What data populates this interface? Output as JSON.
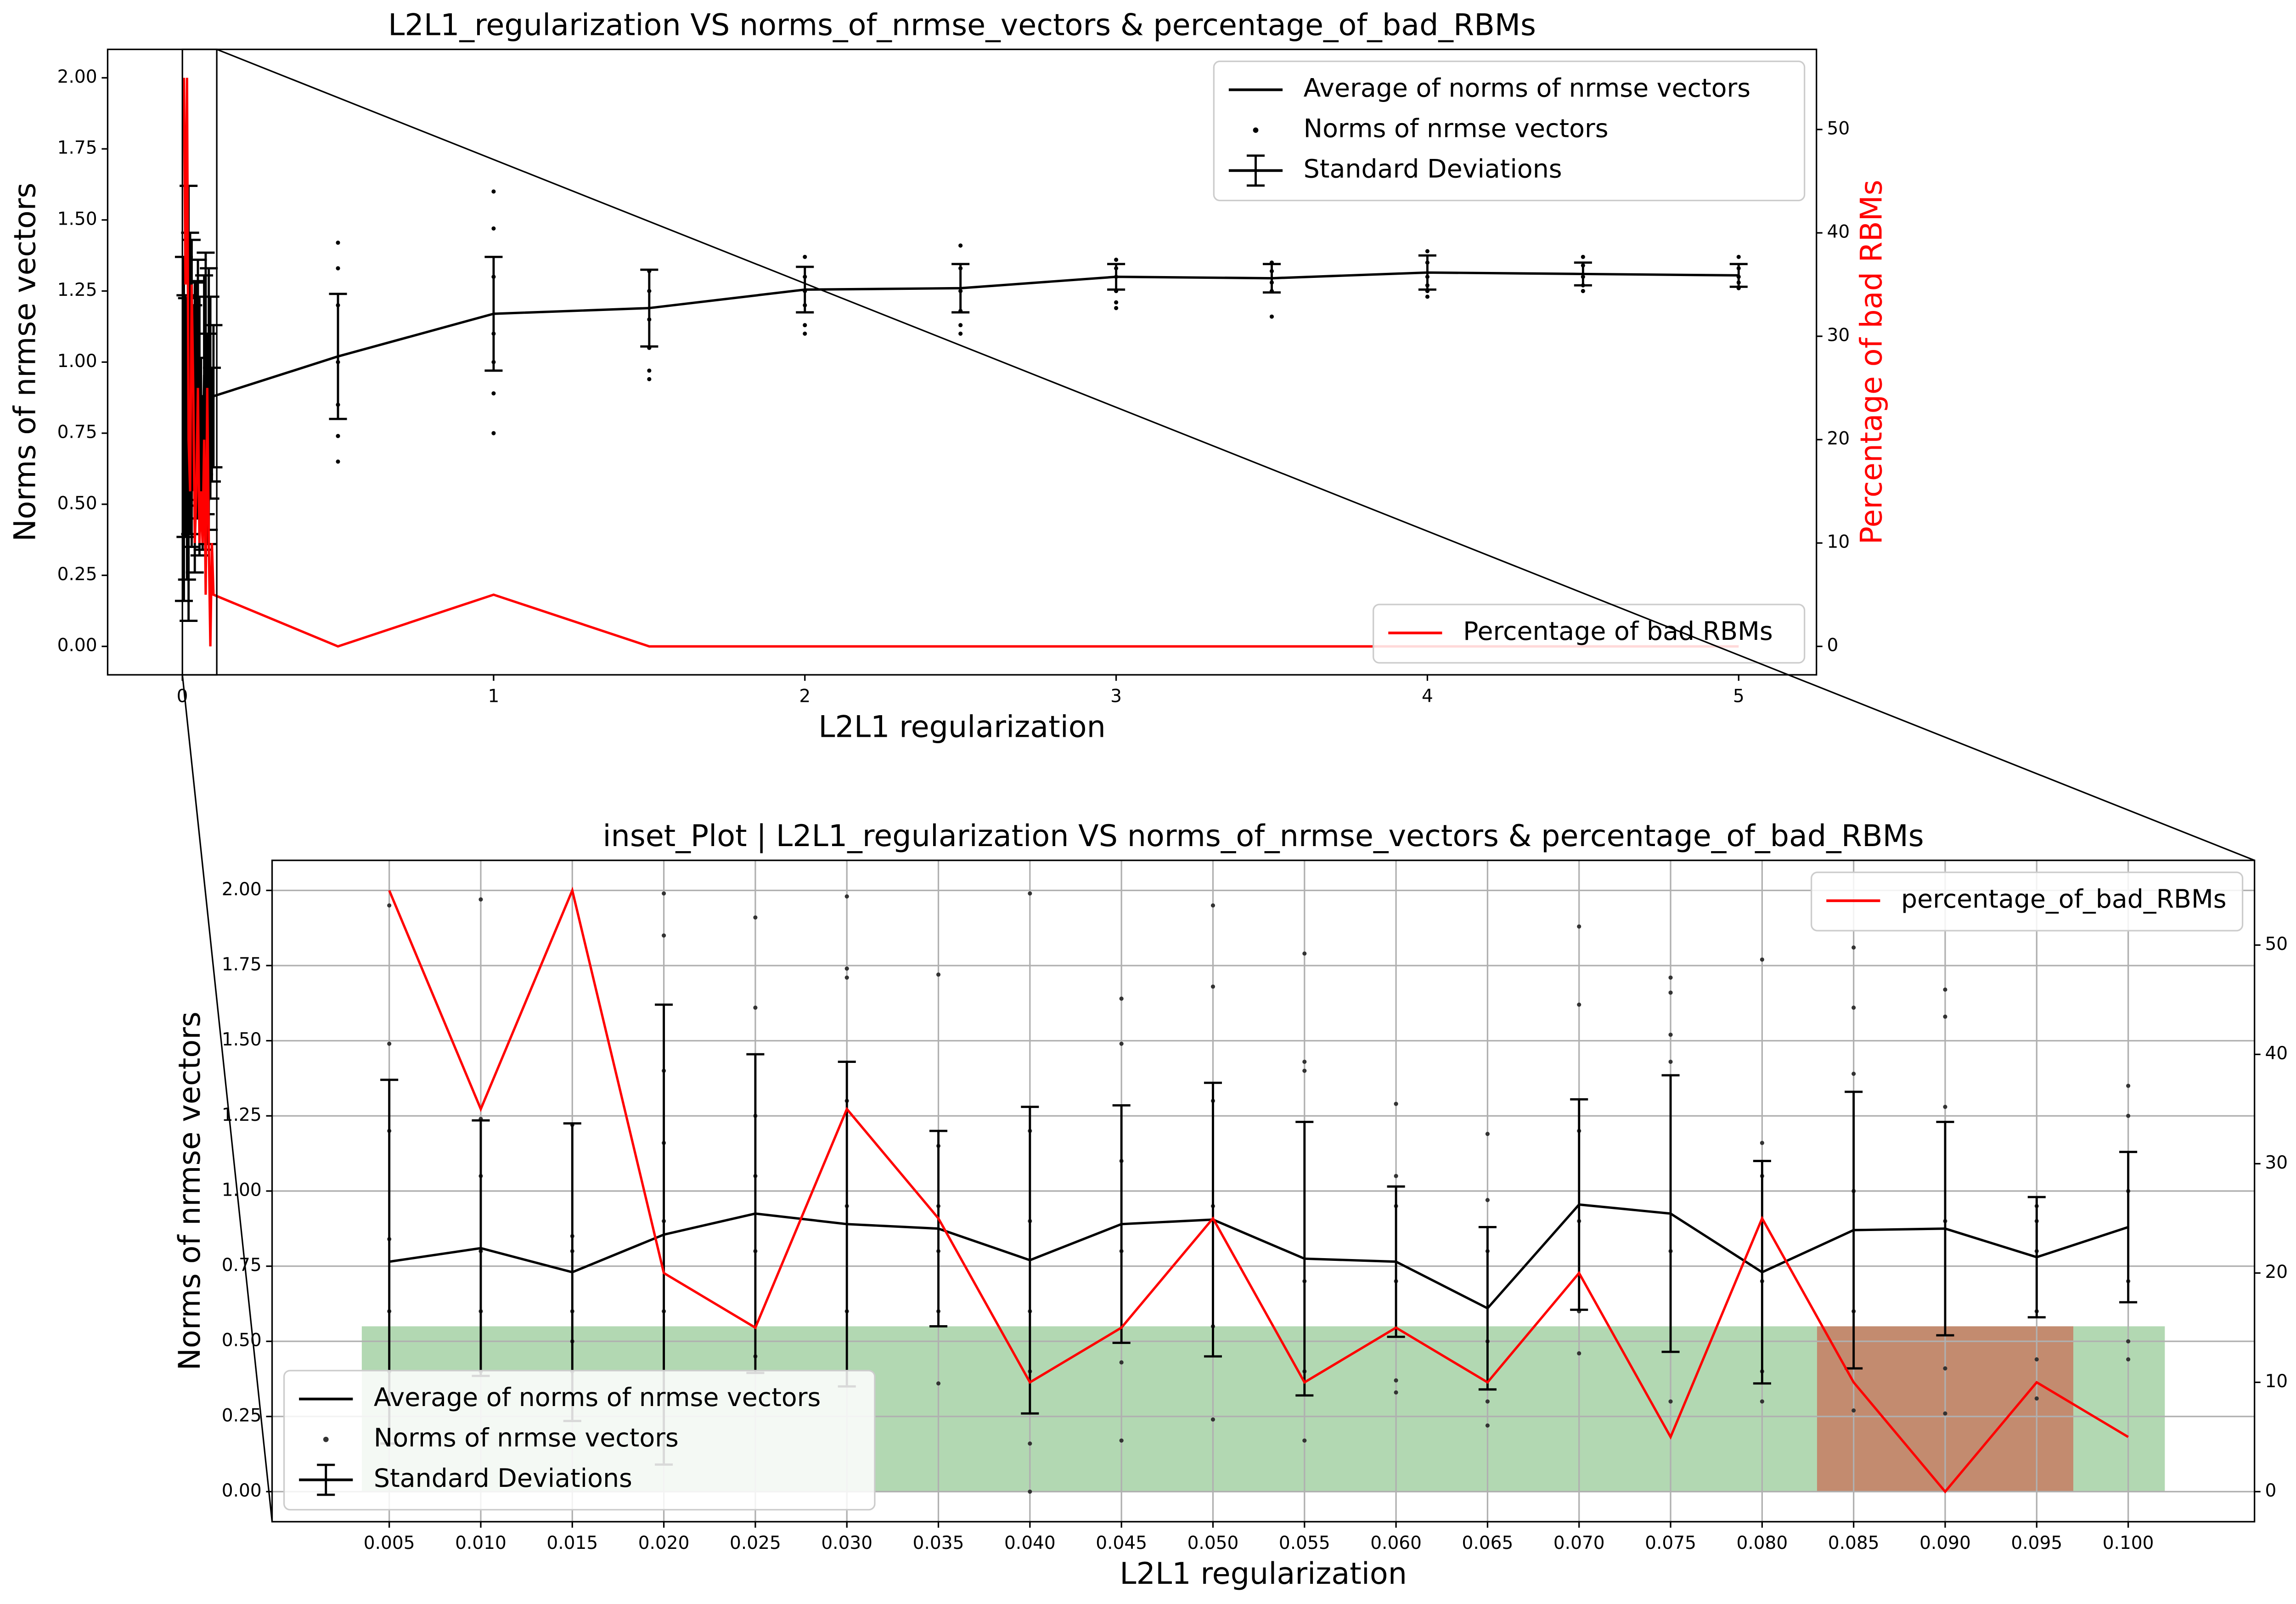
{
  "chart_data": [
    {
      "type": "line",
      "title": "L2L1_regularization  VS  norms_of_nrmse_vectors  &  percentage_of_bad_RBMs",
      "xlabel": "L2L1 regularization",
      "ylabel": "Norms of nrmse vectors",
      "y2label": "Percentage of bad RBMs",
      "xlim": [
        -0.24,
        5.25
      ],
      "ylim": [
        -0.1,
        2.1
      ],
      "y2lim": [
        -2.75,
        57.75
      ],
      "xticks": [
        0,
        1,
        2,
        3,
        4,
        5
      ],
      "yticks": [
        {
          "value": 0,
          "label": "0.00"
        },
        0.25,
        {
          "value": 0.5,
          "label": "0.50"
        },
        0.75,
        {
          "value": 1,
          "label": "1.00"
        },
        1.25,
        {
          "value": 1.5,
          "label": "1.50"
        },
        1.75,
        {
          "value": 2,
          "label": "2.00"
        }
      ],
      "y2ticks": [
        0,
        10,
        20,
        30,
        40,
        50
      ],
      "grid": false,
      "legend": "upper right",
      "y2_legend": "lower right",
      "series": [
        {
          "name": "Average of norms of nrmse vectors",
          "type": "line",
          "color": "#000000",
          "x": [
            0.005,
            0.01,
            0.015,
            0.02,
            0.025,
            0.03,
            0.035,
            0.04,
            0.045,
            0.05,
            0.055,
            0.06,
            0.065,
            0.07,
            0.075,
            0.08,
            0.085,
            0.09,
            0.095,
            0.1,
            0.5,
            1,
            1.5,
            2,
            2.5,
            3,
            3.5,
            4,
            4.5,
            5
          ],
          "values": [
            0.765,
            0.81,
            0.73,
            0.855,
            0.925,
            0.89,
            0.875,
            0.77,
            0.89,
            0.905,
            0.775,
            0.765,
            0.61,
            0.955,
            0.925,
            0.73,
            0.87,
            0.875,
            0.78,
            0.88,
            1.02,
            1.17,
            1.19,
            1.255,
            1.26,
            1.3,
            1.295,
            1.315,
            1.31,
            1.305
          ]
        },
        {
          "name": "Norms of nrmse vectors",
          "type": "scatter",
          "color": "#000000",
          "x": [
            0.5,
            0.5,
            0.5,
            0.5,
            0.5,
            0.5,
            0.5,
            1,
            1,
            1,
            1,
            1,
            1,
            1,
            1.5,
            1.5,
            1.5,
            1.5,
            1.5,
            1.5,
            2,
            2,
            2,
            2,
            2,
            2,
            2.5,
            2.5,
            2.5,
            2.5,
            2.5,
            2.5,
            3,
            3,
            3,
            3,
            3,
            3,
            3.5,
            3.5,
            3.5,
            3.5,
            3.5,
            4,
            4,
            4,
            4,
            4,
            4,
            4.5,
            4.5,
            4.5,
            4.5,
            4.5,
            5,
            5,
            5,
            5,
            5
          ],
          "values": [
            1.42,
            1.33,
            1.2,
            1.0,
            0.85,
            0.74,
            0.65,
            1.6,
            1.47,
            1.3,
            1.1,
            1.0,
            0.89,
            0.75,
            1.32,
            1.25,
            1.15,
            1.05,
            0.97,
            0.94,
            1.37,
            1.3,
            1.25,
            1.2,
            1.13,
            1.1,
            1.41,
            1.33,
            1.25,
            1.18,
            1.13,
            1.1,
            1.36,
            1.33,
            1.3,
            1.25,
            1.21,
            1.19,
            1.35,
            1.32,
            1.28,
            1.25,
            1.16,
            1.39,
            1.35,
            1.3,
            1.27,
            1.25,
            1.23,
            1.37,
            1.34,
            1.3,
            1.27,
            1.25,
            1.37,
            1.33,
            1.3,
            1.28,
            1.26
          ]
        },
        {
          "name": "Standard Deviations",
          "type": "errorbar",
          "color": "#000000",
          "x": [
            0.005,
            0.01,
            0.015,
            0.02,
            0.025,
            0.03,
            0.035,
            0.04,
            0.045,
            0.05,
            0.055,
            0.06,
            0.065,
            0.07,
            0.075,
            0.08,
            0.085,
            0.09,
            0.095,
            0.1,
            0.5,
            1,
            1.5,
            2,
            2.5,
            3,
            3.5,
            4,
            4.5,
            5
          ],
          "values": [
            0.765,
            0.81,
            0.73,
            0.855,
            0.925,
            0.89,
            0.875,
            0.77,
            0.89,
            0.905,
            0.775,
            0.765,
            0.61,
            0.955,
            0.925,
            0.73,
            0.87,
            0.875,
            0.78,
            0.88,
            1.02,
            1.17,
            1.19,
            1.255,
            1.26,
            1.3,
            1.295,
            1.315,
            1.31,
            1.305
          ],
          "errors": [
            0.605,
            0.425,
            0.495,
            0.765,
            0.53,
            0.54,
            0.325,
            0.51,
            0.395,
            0.455,
            0.455,
            0.25,
            0.27,
            0.35,
            0.46,
            0.37,
            0.46,
            0.355,
            0.2,
            0.25,
            0.22,
            0.2,
            0.135,
            0.08,
            0.085,
            0.045,
            0.05,
            0.06,
            0.04,
            0.04
          ]
        },
        {
          "name": "Percentage of bad RBMs",
          "type": "line",
          "axis": "y2",
          "color": "#ff0000",
          "x": [
            0.005,
            0.01,
            0.015,
            0.02,
            0.025,
            0.03,
            0.035,
            0.04,
            0.045,
            0.05,
            0.055,
            0.06,
            0.065,
            0.07,
            0.075,
            0.08,
            0.085,
            0.09,
            0.095,
            0.1,
            0.5,
            1,
            1.5,
            2,
            2.5,
            3,
            3.5,
            4,
            4.5,
            5
          ],
          "values": [
            55,
            35,
            55,
            20,
            15,
            35,
            25,
            10,
            15,
            25,
            10,
            15,
            10,
            20,
            5,
            25,
            10,
            0,
            10,
            5,
            0,
            5,
            0,
            0,
            0,
            0,
            0,
            0,
            0,
            0
          ]
        }
      ]
    },
    {
      "type": "line",
      "title": "inset_Plot | L2L1_regularization  VS  norms_of_nrmse_vectors  &  percentage_of_bad_RBMs",
      "xlabel": "L2L1 regularization",
      "ylabel": "Norms of nrmse vectors",
      "y2label": "Percentage of bad RBMs",
      "xlim": [
        -0.0014,
        0.1069
      ],
      "ylim": [
        -0.1,
        2.1
      ],
      "y2lim": [
        -2.75,
        57.75
      ],
      "xticks": [
        0.005,
        {
          "value": 0.01,
          "label": "0.010"
        },
        0.015,
        {
          "value": 0.02,
          "label": "0.020"
        },
        0.025,
        {
          "value": 0.03,
          "label": "0.030"
        },
        0.035,
        {
          "value": 0.04,
          "label": "0.040"
        },
        0.045,
        {
          "value": 0.05,
          "label": "0.050"
        },
        0.055,
        {
          "value": 0.06,
          "label": "0.060"
        },
        0.065,
        {
          "value": 0.07,
          "label": "0.070"
        },
        0.075,
        {
          "value": 0.08,
          "label": "0.080"
        },
        0.085,
        {
          "value": 0.09,
          "label": "0.090"
        },
        0.095,
        {
          "value": 0.1,
          "label": "0.100"
        }
      ],
      "yticks": [
        {
          "value": 0,
          "label": "0.00"
        },
        0.25,
        {
          "value": 0.5,
          "label": "0.50"
        },
        0.75,
        {
          "value": 1,
          "label": "1.00"
        },
        1.25,
        {
          "value": 1.5,
          "label": "1.50"
        },
        1.75,
        {
          "value": 2,
          "label": "2.00"
        }
      ],
      "y2ticks": [
        0,
        10,
        20,
        30,
        40,
        50
      ],
      "grid": true,
      "legend": "lower left",
      "y2_legend": "upper right",
      "spans": [
        {
          "x": [
            0.0035,
            0.102
          ],
          "y": [
            0,
            0.55
          ],
          "color": "#b2d8b2"
        },
        {
          "x": [
            0.083,
            0.097
          ],
          "y": [
            0,
            0.55
          ],
          "color": "#c38b6f"
        }
      ],
      "series": [
        {
          "name": "Average of norms of nrmse vectors",
          "type": "line",
          "color": "#000000",
          "x": [
            0.005,
            0.01,
            0.015,
            0.02,
            0.025,
            0.03,
            0.035,
            0.04,
            0.045,
            0.05,
            0.055,
            0.06,
            0.065,
            0.07,
            0.075,
            0.08,
            0.085,
            0.09,
            0.095,
            0.1
          ],
          "values": [
            0.765,
            0.81,
            0.73,
            0.855,
            0.925,
            0.89,
            0.875,
            0.77,
            0.89,
            0.905,
            0.775,
            0.765,
            0.61,
            0.955,
            0.925,
            0.73,
            0.87,
            0.875,
            0.78,
            0.88
          ]
        },
        {
          "name": "Norms of nrmse vectors",
          "type": "scatter",
          "color": "#333333",
          "x": [
            0.005,
            0.005,
            0.005,
            0.005,
            0.005,
            0.005,
            0.01,
            0.01,
            0.01,
            0.01,
            0.01,
            0.01,
            0.015,
            0.015,
            0.015,
            0.015,
            0.015,
            0.015,
            0.02,
            0.02,
            0.02,
            0.02,
            0.02,
            0.02,
            0.025,
            0.025,
            0.025,
            0.025,
            0.025,
            0.025,
            0.03,
            0.03,
            0.03,
            0.03,
            0.03,
            0.03,
            0.035,
            0.035,
            0.035,
            0.035,
            0.035,
            0.035,
            0.04,
            0.04,
            0.04,
            0.04,
            0.04,
            0.04,
            0.04,
            0.045,
            0.045,
            0.045,
            0.045,
            0.045,
            0.045,
            0.05,
            0.05,
            0.05,
            0.05,
            0.05,
            0.05,
            0.055,
            0.055,
            0.055,
            0.055,
            0.055,
            0.055,
            0.06,
            0.06,
            0.06,
            0.06,
            0.06,
            0.06,
            0.065,
            0.065,
            0.065,
            0.065,
            0.065,
            0.065,
            0.07,
            0.07,
            0.07,
            0.07,
            0.07,
            0.07,
            0.075,
            0.075,
            0.075,
            0.075,
            0.075,
            0.075,
            0.08,
            0.08,
            0.08,
            0.08,
            0.08,
            0.08,
            0.085,
            0.085,
            0.085,
            0.085,
            0.085,
            0.085,
            0.09,
            0.09,
            0.09,
            0.09,
            0.09,
            0.09,
            0.095,
            0.095,
            0.095,
            0.095,
            0.095,
            0.095,
            0.1,
            0.1,
            0.1,
            0.1,
            0.1,
            0.1
          ],
          "values": [
            1.95,
            1.49,
            1.2,
            0.84,
            0.6,
            0.4,
            1.97,
            1.24,
            1.05,
            0.8,
            0.6,
            0.4,
            1.22,
            0.85,
            0.8,
            0.6,
            0.5,
            0.4,
            1.99,
            1.85,
            1.4,
            1.16,
            0.9,
            0.6,
            1.91,
            1.61,
            1.25,
            1.05,
            0.8,
            0.45,
            1.98,
            1.74,
            1.71,
            1.3,
            0.95,
            0.6,
            1.72,
            1.15,
            0.95,
            0.8,
            0.6,
            0.36,
            1.99,
            1.2,
            0.9,
            0.6,
            0.4,
            0.16,
            0.0,
            1.64,
            1.49,
            1.1,
            0.8,
            0.43,
            0.17,
            1.95,
            1.68,
            1.3,
            0.95,
            0.55,
            0.24,
            1.79,
            1.43,
            1.4,
            0.7,
            0.4,
            0.17,
            1.29,
            1.05,
            0.95,
            0.7,
            0.37,
            0.33,
            1.19,
            0.97,
            0.8,
            0.5,
            0.3,
            0.22,
            1.88,
            1.62,
            1.2,
            0.9,
            0.6,
            0.46,
            1.71,
            1.66,
            1.52,
            1.43,
            0.8,
            0.3,
            1.77,
            1.16,
            1.05,
            0.7,
            0.4,
            0.3,
            1.81,
            1.61,
            1.39,
            1.0,
            0.6,
            0.27,
            1.67,
            1.58,
            1.28,
            0.9,
            0.41,
            0.26,
            0.95,
            0.9,
            0.8,
            0.6,
            0.44,
            0.31,
            1.35,
            1.25,
            1.0,
            0.7,
            0.5,
            0.44
          ]
        },
        {
          "name": "Standard Deviations",
          "type": "errorbar",
          "color": "#000000",
          "x": [
            0.005,
            0.01,
            0.015,
            0.02,
            0.025,
            0.03,
            0.035,
            0.04,
            0.045,
            0.05,
            0.055,
            0.06,
            0.065,
            0.07,
            0.075,
            0.08,
            0.085,
            0.09,
            0.095,
            0.1
          ],
          "values": [
            0.765,
            0.81,
            0.73,
            0.855,
            0.925,
            0.89,
            0.875,
            0.77,
            0.89,
            0.905,
            0.775,
            0.765,
            0.61,
            0.955,
            0.925,
            0.73,
            0.87,
            0.875,
            0.78,
            0.88
          ],
          "errors": [
            0.605,
            0.425,
            0.495,
            0.765,
            0.53,
            0.54,
            0.325,
            0.51,
            0.395,
            0.455,
            0.455,
            0.25,
            0.27,
            0.35,
            0.46,
            0.37,
            0.46,
            0.355,
            0.2,
            0.25
          ]
        },
        {
          "name": "percentage_of_bad_RBMs",
          "type": "line",
          "axis": "y2",
          "color": "#ff0000",
          "x": [
            0.005,
            0.01,
            0.015,
            0.02,
            0.025,
            0.03,
            0.035,
            0.04,
            0.045,
            0.05,
            0.055,
            0.06,
            0.065,
            0.07,
            0.075,
            0.08,
            0.085,
            0.09,
            0.095,
            0.1
          ],
          "values": [
            55,
            35,
            55,
            20,
            15,
            35,
            25,
            10,
            15,
            25,
            10,
            15,
            10,
            20,
            5,
            25,
            10,
            0,
            10,
            5
          ]
        }
      ]
    }
  ]
}
